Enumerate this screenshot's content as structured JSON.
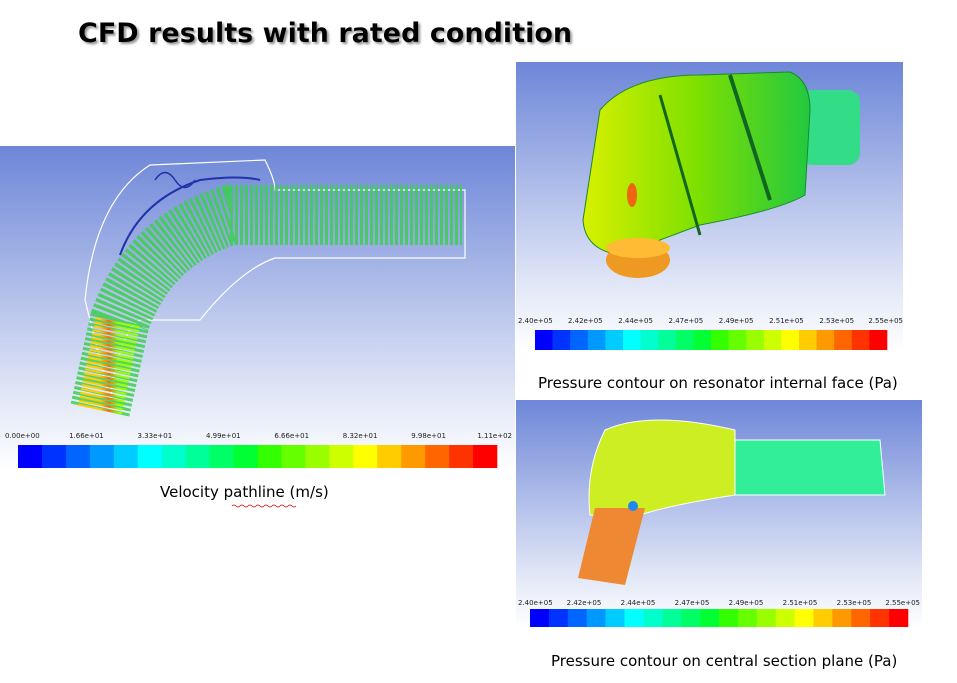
{
  "title": "CFD results with rated condition",
  "panels": [
    {
      "caption": "Velocity pathline (m/s)",
      "colorbar_labels": [
        "0.00e+00",
        "1.66e+01",
        "3.33e+01",
        "4.99e+01",
        "6.66e+01",
        "8.32e+01",
        "9.98e+01",
        "1.11e+02"
      ]
    },
    {
      "caption": "Pressure contour on resonator internal face (Pa)",
      "colorbar_labels": [
        "2.40e+05",
        "2.42e+05",
        "2.44e+05",
        "2.47e+05",
        "2.49e+05",
        "2.51e+05",
        "2.53e+05",
        "2.55e+05"
      ]
    },
    {
      "caption": "Pressure contour on central section plane (Pa)",
      "colorbar_labels": [
        "2.40e+05",
        "2.42e+05",
        "2.44e+05",
        "2.47e+05",
        "2.49e+05",
        "2.51e+05",
        "2.53e+05",
        "2.55e+05"
      ]
    }
  ]
}
